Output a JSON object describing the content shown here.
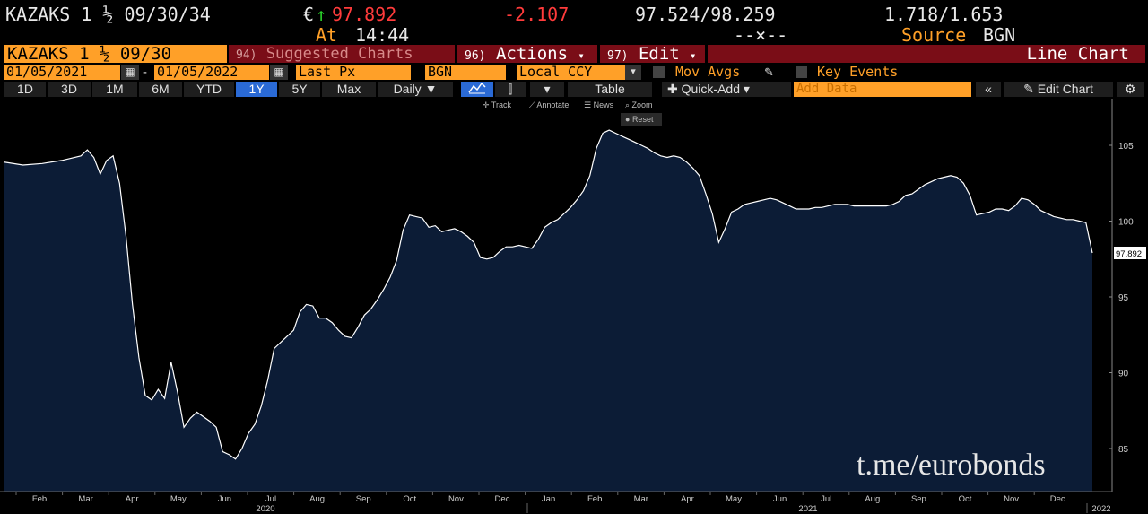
{
  "quote": {
    "ticker": "KAZAKS 1 ½ 09/30/34",
    "currency_symbol": "€",
    "arrow": "↑",
    "last_price": "97.892",
    "at_label": "At",
    "time": "14:44",
    "change": "-2.107",
    "bid_ask": "97.524/98.259",
    "dashes": "--×--",
    "yields": "1.718/1.653",
    "source_label": "Source",
    "source": "BGN"
  },
  "toolbar": {
    "security": "KAZAKS 1 ½ 09/30",
    "suggested_num": "94)",
    "suggested_label": "Suggested Charts",
    "actions_num": "96)",
    "actions_label": "Actions",
    "edit_num": "97)",
    "edit_label": "Edit",
    "chart_type": "Line Chart"
  },
  "params": {
    "start_date": "01/05/2021",
    "end_date": "01/05/2022",
    "field": "Last Px",
    "source": "BGN",
    "currency": "Local CCY",
    "mov_avgs": "Mov Avgs",
    "key_events": "Key Events"
  },
  "periods": [
    "1D",
    "3D",
    "1M",
    "6M",
    "YTD",
    "1Y",
    "5Y",
    "Max"
  ],
  "selected_period": "1Y",
  "frequency": "Daily",
  "table_label": "Table",
  "quick_add": "Quick-Add",
  "add_data_placeholder": "Add Data",
  "edit_chart": "Edit Chart",
  "chart_tools": {
    "track": "Track",
    "annotate": "Annotate",
    "news": "News",
    "zoom": "Zoom",
    "reset": "Reset"
  },
  "colors": {
    "orange": "#ffa028",
    "red": "#ff3b3b",
    "green": "#2ad12a",
    "area_fill": "#0c1c36",
    "line": "#ffffff",
    "selected_tab": "#2a6ad6"
  },
  "watermark": "t.me/eurobonds",
  "chart_data": {
    "type": "area",
    "y_ticks": [
      85,
      90,
      95,
      100,
      105
    ],
    "ylim": [
      82,
      108
    ],
    "last_value_label": "97.892",
    "x_month_labels": [
      "Feb",
      "Mar",
      "Apr",
      "May",
      "Jun",
      "Jul",
      "Aug",
      "Sep",
      "Oct",
      "Nov",
      "Dec",
      "Jan",
      "Feb",
      "Mar",
      "Apr",
      "May",
      "Jun",
      "Jul",
      "Aug",
      "Sep",
      "Oct",
      "Nov",
      "Dec"
    ],
    "x_year_labels": [
      "2020",
      "2021",
      "2022"
    ],
    "points": [
      [
        0,
        103.9
      ],
      [
        3,
        103.7
      ],
      [
        6,
        103.8
      ],
      [
        9,
        104.0
      ],
      [
        12,
        104.3
      ],
      [
        13,
        104.7
      ],
      [
        14,
        104.2
      ],
      [
        15,
        103.1
      ],
      [
        16,
        104.0
      ],
      [
        17,
        104.3
      ],
      [
        18,
        102.5
      ],
      [
        19,
        99.0
      ],
      [
        20,
        94.5
      ],
      [
        21,
        91.0
      ],
      [
        22,
        88.5
      ],
      [
        23,
        88.2
      ],
      [
        24,
        88.9
      ],
      [
        25,
        88.3
      ],
      [
        26,
        90.7
      ],
      [
        27,
        88.7
      ],
      [
        28,
        86.4
      ],
      [
        29,
        87.0
      ],
      [
        30,
        87.4
      ],
      [
        31,
        87.1
      ],
      [
        32,
        86.8
      ],
      [
        33,
        86.4
      ],
      [
        34,
        84.8
      ],
      [
        35,
        84.6
      ],
      [
        36,
        84.3
      ],
      [
        37,
        85.0
      ],
      [
        38,
        86.0
      ],
      [
        39,
        86.6
      ],
      [
        40,
        87.8
      ],
      [
        41,
        89.5
      ],
      [
        42,
        91.6
      ],
      [
        43,
        92.0
      ],
      [
        44,
        92.4
      ],
      [
        45,
        92.8
      ],
      [
        46,
        94.0
      ],
      [
        47,
        94.5
      ],
      [
        48,
        94.4
      ],
      [
        49,
        93.6
      ],
      [
        50,
        93.6
      ],
      [
        51,
        93.3
      ],
      [
        52,
        92.8
      ],
      [
        53,
        92.4
      ],
      [
        54,
        92.3
      ],
      [
        55,
        93.0
      ],
      [
        56,
        93.8
      ],
      [
        57,
        94.2
      ],
      [
        58,
        94.8
      ],
      [
        59,
        95.5
      ],
      [
        60,
        96.3
      ],
      [
        61,
        97.4
      ],
      [
        62,
        99.4
      ],
      [
        63,
        100.4
      ],
      [
        64,
        100.3
      ],
      [
        65,
        100.2
      ],
      [
        66,
        99.6
      ],
      [
        67,
        99.7
      ],
      [
        68,
        99.3
      ],
      [
        69,
        99.4
      ],
      [
        70,
        99.5
      ],
      [
        71,
        99.3
      ],
      [
        72,
        99.0
      ],
      [
        73,
        98.6
      ],
      [
        74,
        97.6
      ],
      [
        75,
        97.5
      ],
      [
        76,
        97.6
      ],
      [
        77,
        98.0
      ],
      [
        78,
        98.3
      ],
      [
        79,
        98.3
      ],
      [
        80,
        98.4
      ],
      [
        81,
        98.3
      ],
      [
        82,
        98.2
      ],
      [
        83,
        98.8
      ],
      [
        84,
        99.6
      ],
      [
        85,
        99.9
      ],
      [
        86,
        100.1
      ],
      [
        87,
        100.5
      ],
      [
        88,
        100.9
      ],
      [
        89,
        101.4
      ],
      [
        90,
        102.0
      ],
      [
        91,
        103.0
      ],
      [
        92,
        104.8
      ],
      [
        93,
        105.8
      ],
      [
        94,
        106.0
      ],
      [
        95,
        105.8
      ],
      [
        96,
        105.6
      ],
      [
        97,
        105.4
      ],
      [
        98,
        105.2
      ],
      [
        99,
        105.0
      ],
      [
        100,
        104.8
      ],
      [
        101,
        104.5
      ],
      [
        102,
        104.3
      ],
      [
        103,
        104.2
      ],
      [
        104,
        104.3
      ],
      [
        105,
        104.2
      ],
      [
        106,
        103.9
      ],
      [
        107,
        103.5
      ],
      [
        108,
        103.0
      ],
      [
        109,
        101.8
      ],
      [
        110,
        100.5
      ],
      [
        111,
        98.6
      ],
      [
        112,
        99.5
      ],
      [
        113,
        100.6
      ],
      [
        114,
        100.8
      ],
      [
        115,
        101.1
      ],
      [
        116,
        101.2
      ],
      [
        117,
        101.3
      ],
      [
        118,
        101.4
      ],
      [
        119,
        101.5
      ],
      [
        120,
        101.4
      ],
      [
        121,
        101.2
      ],
      [
        122,
        101.0
      ],
      [
        123,
        100.8
      ],
      [
        124,
        100.8
      ],
      [
        125,
        100.8
      ],
      [
        126,
        100.9
      ],
      [
        127,
        100.9
      ],
      [
        128,
        101.0
      ],
      [
        129,
        101.1
      ],
      [
        130,
        101.1
      ],
      [
        131,
        101.1
      ],
      [
        132,
        101.0
      ],
      [
        133,
        101.0
      ],
      [
        134,
        101.0
      ],
      [
        135,
        101.0
      ],
      [
        136,
        101.0
      ],
      [
        137,
        101.0
      ],
      [
        138,
        101.1
      ],
      [
        139,
        101.3
      ],
      [
        140,
        101.7
      ],
      [
        141,
        101.8
      ],
      [
        142,
        102.1
      ],
      [
        143,
        102.4
      ],
      [
        144,
        102.6
      ],
      [
        145,
        102.8
      ],
      [
        146,
        102.9
      ],
      [
        147,
        103.0
      ],
      [
        148,
        102.9
      ],
      [
        149,
        102.5
      ],
      [
        150,
        101.7
      ],
      [
        151,
        100.4
      ],
      [
        152,
        100.5
      ],
      [
        153,
        100.6
      ],
      [
        154,
        100.8
      ],
      [
        155,
        100.8
      ],
      [
        156,
        100.7
      ],
      [
        157,
        101.0
      ],
      [
        158,
        101.5
      ],
      [
        159,
        101.4
      ],
      [
        160,
        101.1
      ],
      [
        161,
        100.7
      ],
      [
        162,
        100.5
      ],
      [
        163,
        100.3
      ],
      [
        164,
        100.2
      ],
      [
        165,
        100.1
      ],
      [
        166,
        100.1
      ],
      [
        167,
        100.0
      ],
      [
        168,
        99.9
      ],
      [
        169,
        97.9
      ]
    ]
  }
}
